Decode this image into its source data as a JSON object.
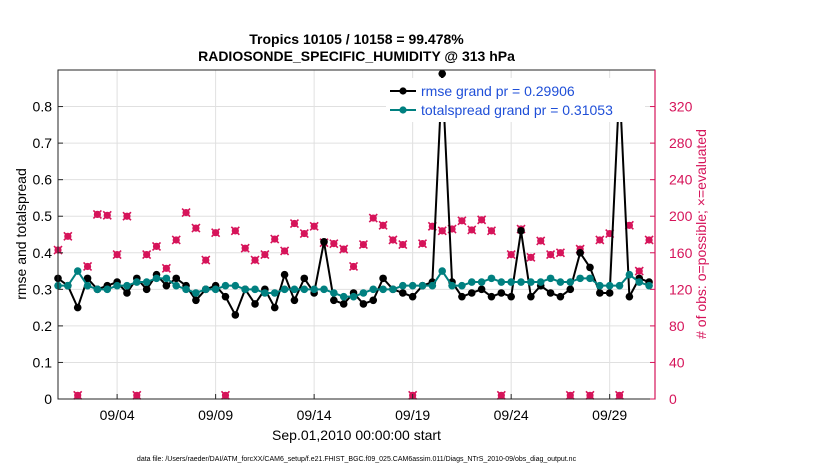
{
  "chart_data": {
    "type": "line",
    "title_line1": "Tropics 10105 / 10158 = 99.478%",
    "title_line2": "RADIOSONDE_SPECIFIC_HUMIDITY @ 313 hPa",
    "xlabel": "Sep.01,2010 00:00:00 start",
    "ylabel_left": "rmse and totalspread",
    "ylabel_right": "# of obs: o=possible; ×=evaluated",
    "footer": "data file: /Users/raeder/DAI/ATM_forcXX/CAM6_setup/f.e21.FHIST_BGC.f09_025.CAM6assim.011/Diags_NTrS_2010-09/obs_diag_output.nc",
    "xlim": [
      0.5,
      30.8
    ],
    "ylim_left": [
      0,
      0.9
    ],
    "ylim_right": [
      0,
      360
    ],
    "x_ticks": [
      {
        "value": 3.5,
        "label": "09/04"
      },
      {
        "value": 8.5,
        "label": "09/09"
      },
      {
        "value": 13.5,
        "label": "09/14"
      },
      {
        "value": 18.5,
        "label": "09/19"
      },
      {
        "value": 23.5,
        "label": "09/24"
      },
      {
        "value": 28.5,
        "label": "09/29"
      }
    ],
    "y_ticks_left": [
      0,
      0.1,
      0.2,
      0.3,
      0.4,
      0.5,
      0.6,
      0.7,
      0.8
    ],
    "y_tick_labels_left": [
      "0",
      "0.1",
      "0.2",
      "0.3",
      "0.4",
      "0.5",
      "0.6",
      "0.7",
      "0.8"
    ],
    "y_ticks_right": [
      0,
      40,
      80,
      120,
      160,
      200,
      240,
      280,
      320
    ],
    "y_tick_labels_right": [
      "0",
      "40",
      "80",
      "120",
      "160",
      "200",
      "240",
      "280",
      "320"
    ],
    "legend": [
      {
        "label": "rmse grand pr = 0.29906",
        "color": "#000000"
      },
      {
        "label": "totalspread grand pr = 0.31053",
        "color": "#008080"
      }
    ],
    "colors": {
      "rmse": "#000000",
      "spread": "#008080",
      "obs": "#d6145a",
      "legend_text": "#1f4fd8",
      "grid": "#e0e0e0"
    },
    "series_rmse": {
      "name": "rmse",
      "x": [
        0.5,
        1.0,
        1.5,
        2.0,
        2.5,
        3.0,
        3.5,
        4.0,
        4.5,
        5.0,
        5.5,
        6.0,
        6.5,
        7.0,
        7.5,
        8.0,
        8.5,
        9.0,
        9.5,
        10.0,
        10.5,
        11.0,
        11.5,
        12.0,
        12.5,
        13.0,
        13.5,
        14.0,
        14.5,
        15.0,
        15.5,
        16.0,
        16.5,
        17.0,
        17.5,
        18.0,
        18.5,
        19.0,
        19.5,
        20.0,
        20.5,
        21.0,
        21.5,
        22.0,
        22.5,
        23.0,
        23.5,
        24.0,
        24.5,
        25.0,
        25.5,
        26.0,
        26.5,
        27.0,
        27.5,
        28.0,
        28.5,
        29.0,
        29.5,
        30.0,
        30.5
      ],
      "values": [
        0.33,
        0.31,
        0.25,
        0.33,
        0.3,
        0.31,
        0.32,
        0.29,
        0.33,
        0.3,
        0.34,
        0.31,
        0.33,
        0.31,
        0.27,
        0.3,
        0.31,
        0.28,
        0.23,
        0.3,
        0.26,
        0.3,
        0.25,
        0.34,
        0.27,
        0.33,
        0.29,
        0.43,
        0.27,
        0.26,
        0.29,
        0.26,
        0.27,
        0.33,
        0.3,
        0.29,
        0.28,
        0.31,
        0.32,
        0.89,
        0.32,
        0.28,
        0.29,
        0.3,
        0.28,
        0.29,
        0.28,
        0.46,
        0.28,
        0.31,
        0.29,
        0.28,
        0.3,
        0.4,
        0.36,
        0.29,
        0.29,
        0.86,
        0.28,
        0.33,
        0.32
      ]
    },
    "series_spread": {
      "name": "totalspread",
      "x": [
        0.5,
        1.0,
        1.5,
        2.0,
        2.5,
        3.0,
        3.5,
        4.0,
        4.5,
        5.0,
        5.5,
        6.0,
        6.5,
        7.0,
        7.5,
        8.0,
        8.5,
        9.0,
        9.5,
        10.0,
        10.5,
        11.0,
        11.5,
        12.0,
        12.5,
        13.0,
        13.5,
        14.0,
        14.5,
        15.0,
        15.5,
        16.0,
        16.5,
        17.0,
        17.5,
        18.0,
        18.5,
        19.0,
        19.5,
        20.0,
        20.5,
        21.0,
        21.5,
        22.0,
        22.5,
        23.0,
        23.5,
        24.0,
        24.5,
        25.0,
        25.5,
        26.0,
        26.5,
        27.0,
        27.5,
        28.0,
        28.5,
        29.0,
        29.5,
        30.0,
        30.5
      ],
      "values": [
        0.31,
        0.31,
        0.35,
        0.31,
        0.3,
        0.3,
        0.31,
        0.31,
        0.32,
        0.32,
        0.33,
        0.33,
        0.31,
        0.3,
        0.29,
        0.3,
        0.3,
        0.31,
        0.31,
        0.3,
        0.3,
        0.29,
        0.29,
        0.3,
        0.3,
        0.3,
        0.3,
        0.3,
        0.29,
        0.28,
        0.28,
        0.29,
        0.3,
        0.3,
        0.3,
        0.31,
        0.31,
        0.31,
        0.31,
        0.35,
        0.31,
        0.31,
        0.32,
        0.32,
        0.33,
        0.32,
        0.32,
        0.32,
        0.32,
        0.32,
        0.33,
        0.32,
        0.32,
        0.33,
        0.33,
        0.31,
        0.31,
        0.31,
        0.34,
        0.32,
        0.31
      ]
    },
    "series_obs_possible": {
      "name": "possible",
      "values": [
        163,
        178,
        4,
        145,
        202,
        201,
        158,
        200,
        4,
        158,
        167,
        143,
        174,
        204,
        187,
        152,
        182,
        4,
        184,
        165,
        152,
        158,
        175,
        162,
        192,
        181,
        189,
        171,
        170,
        164,
        145,
        169,
        198,
        190,
        174,
        169,
        4,
        170,
        189,
        184,
        186,
        195,
        185,
        196,
        184,
        4,
        158,
        186,
        155,
        173,
        158,
        160,
        4,
        164,
        4,
        174,
        181,
        4,
        190,
        140,
        174
      ]
    },
    "series_obs_evaluated": {
      "name": "evaluated",
      "values": [
        163,
        178,
        4,
        145,
        202,
        201,
        158,
        200,
        4,
        158,
        167,
        143,
        174,
        204,
        187,
        152,
        182,
        4,
        184,
        165,
        152,
        158,
        175,
        162,
        192,
        181,
        189,
        171,
        170,
        164,
        145,
        169,
        198,
        190,
        174,
        169,
        4,
        170,
        189,
        184,
        186,
        195,
        185,
        196,
        184,
        4,
        158,
        186,
        155,
        173,
        158,
        160,
        4,
        164,
        4,
        174,
        181,
        4,
        190,
        140,
        174
      ]
    }
  }
}
